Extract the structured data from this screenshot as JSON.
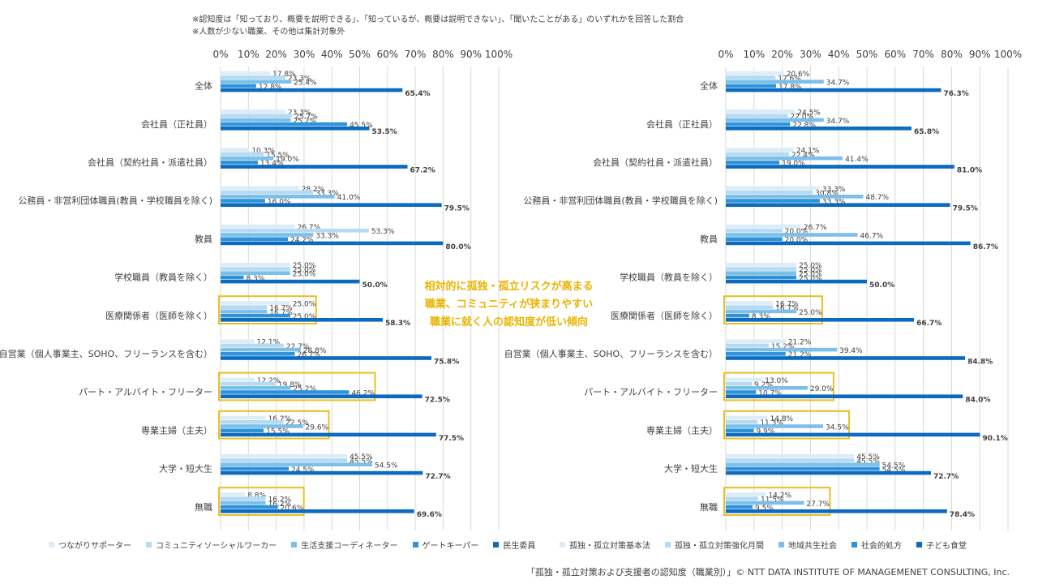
{
  "notes": {
    "line1": "※認知度は「知っており、概要を説明できる」、「知っているが、概要は説明できない」、「聞いたことがある」のいずれかを回答した割合",
    "line2": "※人数が少ない職業、その他は集計対象外"
  },
  "annotation": {
    "line1": "相対的に孤独・孤立リスクが高まる",
    "line2": "職業、コミュニティが狭まりやすい",
    "line3": "職業に就く人の認知度が低い傾向"
  },
  "footer": "「孤独・孤立対策および支援者の認知度（職業別）」© NTT DATA INSTITUTE OF MANAGEMENET CONSULTING, Inc.",
  "highlight_color": "#e8c020",
  "chart_data": [
    {
      "type": "bar",
      "orientation": "horizontal",
      "title": "",
      "xlim": [
        0,
        100
      ],
      "ticks": [
        "0%",
        "10%",
        "20%",
        "30%",
        "40%",
        "50%",
        "60%",
        "70%",
        "80%",
        "90%",
        "100%"
      ],
      "categories": [
        "全体",
        "会社員（正社員）",
        "会社員（契約社員・派遣社員）",
        "公務員・非営利団体職員(教員・学校職員を除く)",
        "教員",
        "学校職員（教員を除く）",
        "医療関係者（医師を除く）",
        "自営業（個人事業主、SOHO、フリーランスを含む）",
        "パート・アルバイト・フリーター",
        "専業主婦（主夫）",
        "大学・短大生",
        "無職"
      ],
      "series": [
        {
          "name": "つながりサポーター",
          "color": "#dcecf8",
          "values": [
            17.8,
            23.3,
            10.3,
            28.2,
            26.7,
            25.0,
            25.0,
            12.1,
            12.2,
            16.2,
            45.5,
            8.8
          ]
        },
        {
          "name": "コミュニティソーシャルワーカー",
          "color": "#b5daf2",
          "values": [
            23.3,
            25.7,
            15.5,
            33.3,
            53.3,
            25.0,
            16.7,
            22.7,
            19.8,
            22.5,
            45.5,
            16.2
          ]
        },
        {
          "name": "生活支援コーディネーター",
          "color": "#7cc0ea",
          "values": [
            25.4,
            25.2,
            19.0,
            41.0,
            33.3,
            25.0,
            16.7,
            28.8,
            25.2,
            29.6,
            54.5,
            16.2
          ]
        },
        {
          "name": "ゲートキーパー",
          "color": "#2e93d8",
          "values": [
            12.8,
            45.5,
            13.4,
            16.0,
            24.2,
            8.3,
            25.0,
            26.7,
            46.2,
            15.5,
            24.5,
            20.6
          ]
        },
        {
          "name": "民生委員",
          "color": "#0c6bc0",
          "values": [
            65.4,
            53.5,
            67.2,
            79.5,
            80.0,
            50.0,
            58.3,
            75.8,
            72.5,
            77.5,
            72.7,
            69.6
          ]
        }
      ],
      "highlighted_categories": [
        "医療関係者（医師を除く）",
        "パート・アルバイト・フリーター",
        "専業主婦（主夫）",
        "無職"
      ]
    },
    {
      "type": "bar",
      "orientation": "horizontal",
      "title": "",
      "xlim": [
        0,
        100
      ],
      "ticks": [
        "0%",
        "10%",
        "20%",
        "30%",
        "40%",
        "50%",
        "60%",
        "70%",
        "80%",
        "90%",
        "100%"
      ],
      "categories": [
        "全体",
        "会社員（正社員）",
        "会社員（契約社員・派遣社員）",
        "公務員・非営利団体職員(教員・学校職員を除く)",
        "教員",
        "学校職員（教員を除く）",
        "医療関係者（医師を除く）",
        "自営業（個人事業主、SOHO、フリーランスを含む）",
        "パート・アルバイト・フリーター",
        "専業主婦（主夫）",
        "大学・短大生",
        "無職"
      ],
      "series": [
        {
          "name": "孤独・孤立対策基本法",
          "color": "#dcecf8",
          "values": [
            20.6,
            24.5,
            24.1,
            33.3,
            26.7,
            25.0,
            16.7,
            21.2,
            13.0,
            14.8,
            45.5,
            14.2
          ]
        },
        {
          "name": "孤独・孤立対策強化月間",
          "color": "#b5daf2",
          "values": [
            17.6,
            22.0,
            22.4,
            30.8,
            20.0,
            25.0,
            16.7,
            15.2,
            9.2,
            11.3,
            45.5,
            11.5
          ]
        },
        {
          "name": "地域共生社会",
          "color": "#7cc0ea",
          "values": [
            34.7,
            34.7,
            41.4,
            48.7,
            46.7,
            25.0,
            25.0,
            39.4,
            29.0,
            34.5,
            54.5,
            27.7
          ]
        },
        {
          "name": "社会的処方",
          "color": "#2e93d8",
          "values": [
            17.8,
            22.8,
            19.0,
            33.3,
            20.0,
            25.0,
            8.3,
            21.2,
            10.7,
            9.9,
            54.5,
            9.5
          ]
        },
        {
          "name": "子ども食堂",
          "color": "#0c6bc0",
          "values": [
            76.3,
            65.8,
            81.0,
            79.5,
            86.7,
            50.0,
            66.7,
            84.8,
            84.0,
            90.1,
            72.7,
            78.4
          ]
        }
      ],
      "highlighted_categories": [
        "医療関係者（医師を除く）",
        "パート・アルバイト・フリーター",
        "専業主婦（主夫）",
        "無職"
      ]
    }
  ]
}
